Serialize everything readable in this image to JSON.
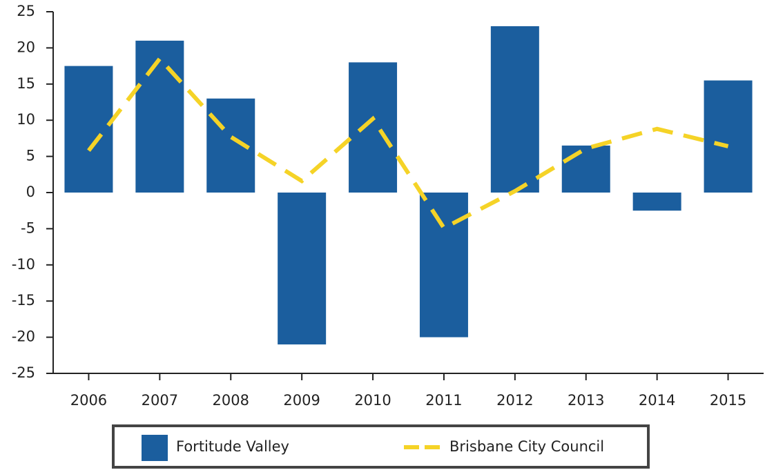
{
  "chart_data": {
    "type": "bar",
    "categories": [
      "2006",
      "2007",
      "2008",
      "2009",
      "2010",
      "2011",
      "2012",
      "2013",
      "2014",
      "2015"
    ],
    "series": [
      {
        "name": "Fortitude Valley",
        "type": "bar",
        "color": "#1b5e9e",
        "values": [
          17.5,
          21,
          13,
          -21,
          18,
          -20,
          23,
          6.5,
          -2.5,
          15.5
        ]
      },
      {
        "name": "Brisbane City Council",
        "type": "line",
        "color": "#f5d327",
        "values": [
          5.8,
          18.5,
          7.7,
          1.6,
          10.2,
          -4.9,
          0.2,
          6.1,
          8.8,
          6.4
        ]
      }
    ],
    "ylim": [
      -25,
      25
    ],
    "yticks": [
      -25,
      -20,
      -15,
      -10,
      -5,
      0,
      5,
      10,
      15,
      20,
      25
    ],
    "grid": false,
    "legend": "bottom"
  }
}
